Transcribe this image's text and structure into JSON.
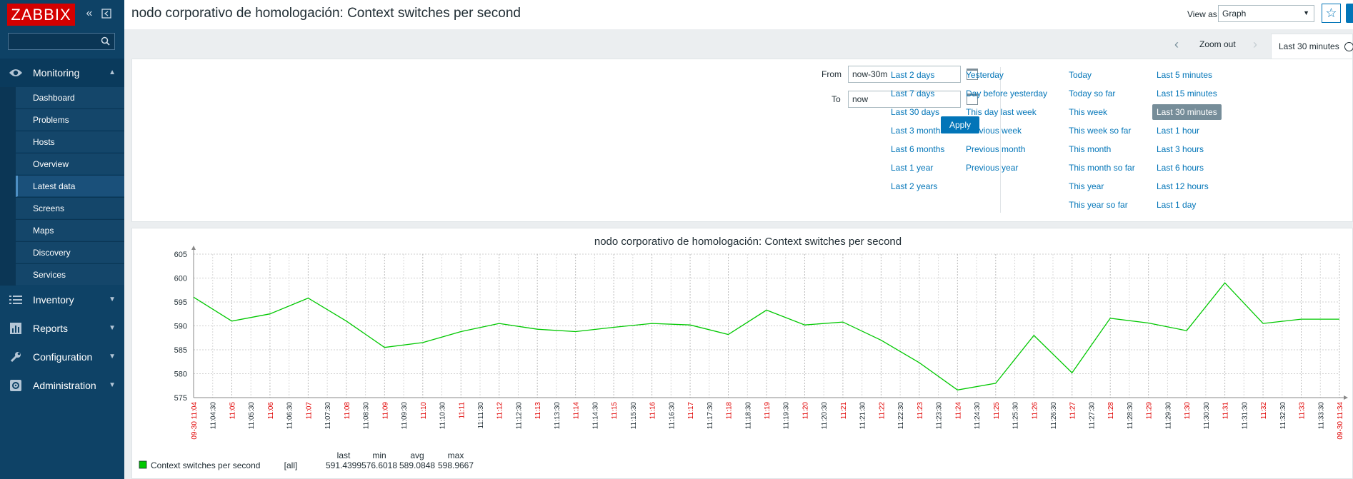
{
  "brand": {
    "logo_text": "ZABBIX"
  },
  "search": {
    "placeholder": ""
  },
  "menu": {
    "sections": [
      {
        "label": "Monitoring",
        "icon": "eye-icon",
        "expanded": true
      },
      {
        "label": "Inventory",
        "icon": "list-icon",
        "expanded": false
      },
      {
        "label": "Reports",
        "icon": "bar-chart-icon",
        "expanded": false
      },
      {
        "label": "Configuration",
        "icon": "wrench-icon",
        "expanded": false
      },
      {
        "label": "Administration",
        "icon": "gear-icon",
        "expanded": false
      }
    ],
    "monitoring_items": [
      "Dashboard",
      "Problems",
      "Hosts",
      "Overview",
      "Latest data",
      "Screens",
      "Maps",
      "Discovery",
      "Services"
    ],
    "active_item": "Latest data"
  },
  "header": {
    "title": "nodo corporativo de homologación: Context switches per second",
    "view_as_label": "View as",
    "view_as_value": "Graph"
  },
  "timenav": {
    "zoom_out": "Zoom out",
    "active_tab": "Last 30 minutes"
  },
  "filter": {
    "from_label": "From",
    "from_value": "now-30m",
    "to_label": "To",
    "to_value": "now",
    "apply_label": "Apply",
    "quick_links": [
      [
        "Last 2 days",
        "Last 7 days",
        "Last 30 days",
        "Last 3 months",
        "Last 6 months",
        "Last 1 year",
        "Last 2 years"
      ],
      [
        "Yesterday",
        "Day before yesterday",
        "This day last week",
        "Previous week",
        "Previous month",
        "Previous year"
      ],
      [
        "Today",
        "Today so far",
        "This week",
        "This week so far",
        "This month",
        "This month so far",
        "This year",
        "This year so far"
      ],
      [
        "Last 5 minutes",
        "Last 15 minutes",
        "Last 30 minutes",
        "Last 1 hour",
        "Last 3 hours",
        "Last 6 hours",
        "Last 12 hours",
        "Last 1 day"
      ]
    ],
    "selected": "Last 30 minutes"
  },
  "chart_data": {
    "type": "line",
    "title": "nodo corporativo de homologación: Context switches per second",
    "ylim": [
      575,
      605
    ],
    "yticks": [
      575,
      580,
      585,
      590,
      595,
      600,
      605
    ],
    "xticks": [
      "09-30 11:04",
      "11:04:30",
      "11:05",
      "11:05:30",
      "11:06",
      "11:06:30",
      "11:07",
      "11:07:30",
      "11:08",
      "11:08:30",
      "11:09",
      "11:09:30",
      "11:10",
      "11:10:30",
      "11:11",
      "11:11:30",
      "11:12",
      "11:12:30",
      "11:13",
      "11:13:30",
      "11:14",
      "11:14:30",
      "11:15",
      "11:15:30",
      "11:16",
      "11:16:30",
      "11:17",
      "11:17:30",
      "11:18",
      "11:18:30",
      "11:19",
      "11:19:30",
      "11:20",
      "11:20:30",
      "11:21",
      "11:21:30",
      "11:22",
      "11:22:30",
      "11:23",
      "11:23:30",
      "11:24",
      "11:24:30",
      "11:25",
      "11:25:30",
      "11:26",
      "11:26:30",
      "11:27",
      "11:27:30",
      "11:28",
      "11:28:30",
      "11:29",
      "11:29:30",
      "11:30",
      "11:30:30",
      "11:31",
      "11:31:30",
      "11:32",
      "11:32:30",
      "11:33",
      "11:33:30",
      "09-30 11:34"
    ],
    "xlim_minutes": [
      0,
      30
    ],
    "series": [
      {
        "name": "Context switches per second",
        "color": "#00c800",
        "points": [
          [
            0,
            596
          ],
          [
            1,
            591
          ],
          [
            2,
            592.5
          ],
          [
            3,
            595.8
          ],
          [
            4,
            591
          ],
          [
            5,
            585.5
          ],
          [
            6,
            586.5
          ],
          [
            7,
            588.8
          ],
          [
            8,
            590.5
          ],
          [
            9,
            589.3
          ],
          [
            10,
            588.8
          ],
          [
            11,
            589.7
          ],
          [
            12,
            590.5
          ],
          [
            13,
            590.2
          ],
          [
            14,
            588.2
          ],
          [
            15,
            593.3
          ],
          [
            16,
            590.2
          ],
          [
            17,
            590.8
          ],
          [
            18,
            587
          ],
          [
            19,
            582.3
          ],
          [
            20,
            576.6
          ],
          [
            21,
            578
          ],
          [
            22,
            588
          ],
          [
            23,
            580.2
          ],
          [
            24,
            591.6
          ],
          [
            25,
            590.6
          ],
          [
            26,
            589
          ],
          [
            27,
            599
          ],
          [
            28,
            590.5
          ],
          [
            29,
            591.4
          ],
          [
            30,
            591.4
          ]
        ]
      }
    ],
    "legend": {
      "headers": [
        "last",
        "min",
        "avg",
        "max"
      ],
      "rows": [
        {
          "name": "Context switches per second",
          "func": "[all]",
          "last": "591.4399",
          "min": "576.6018",
          "avg": "589.0848",
          "max": "598.9667"
        }
      ]
    }
  }
}
